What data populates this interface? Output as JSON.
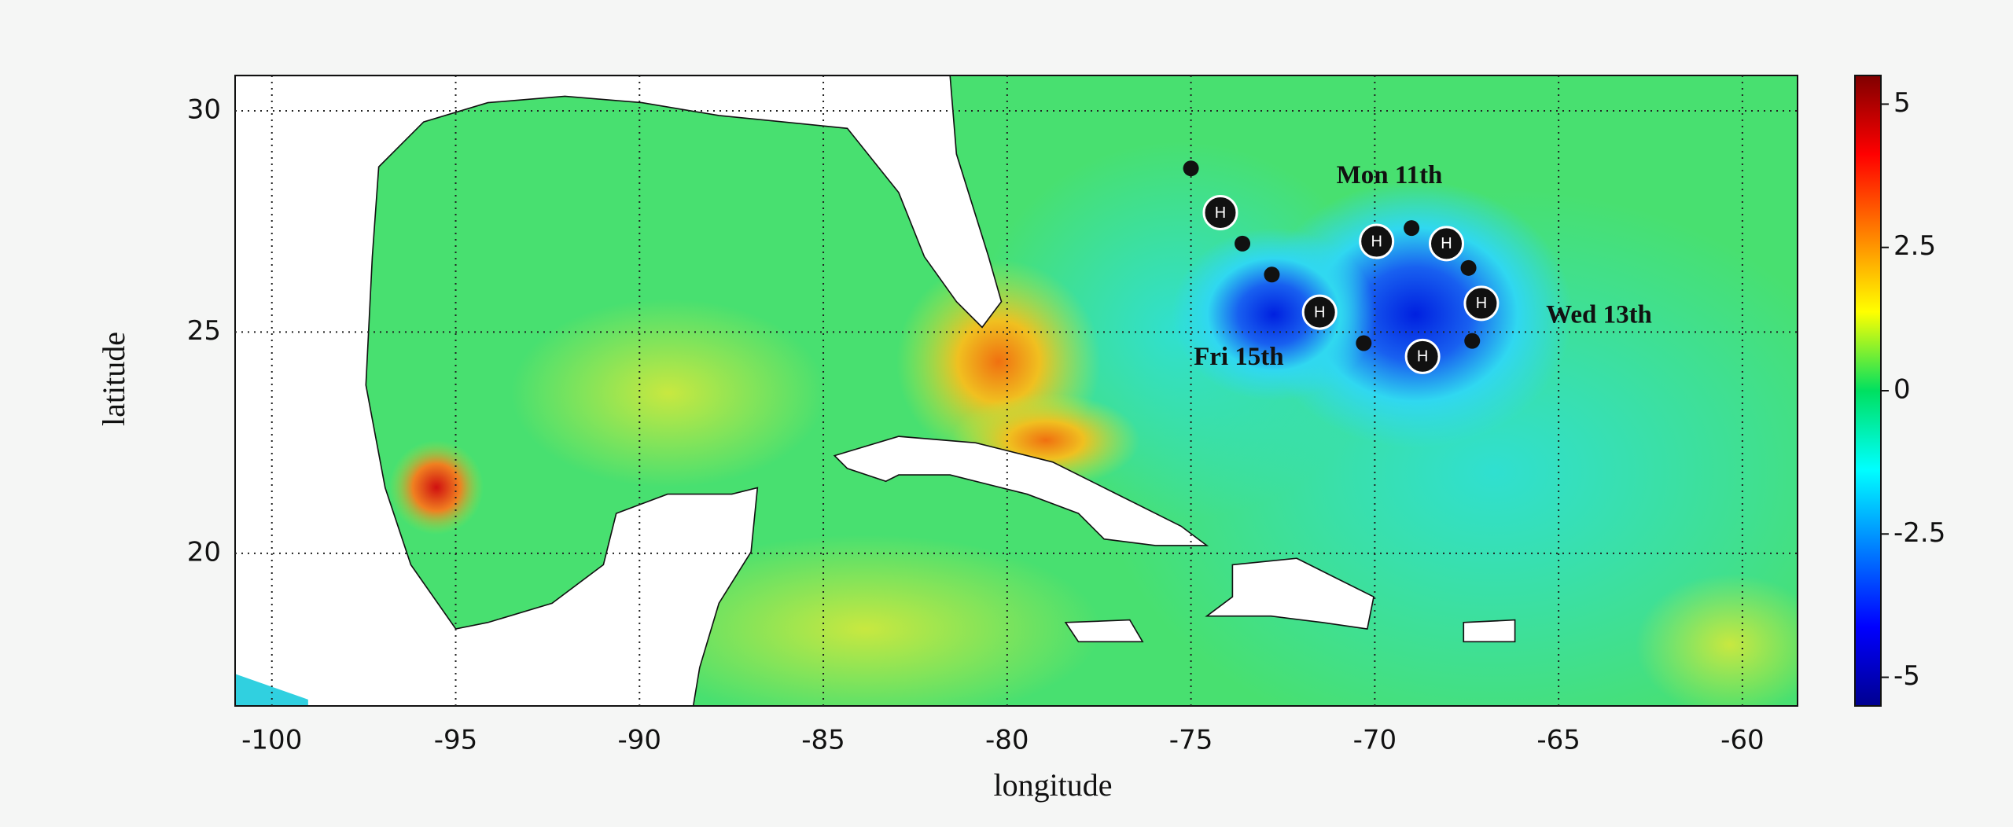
{
  "chart_data": {
    "type": "map",
    "xlabel": "longitude",
    "ylabel": "latitude",
    "xlim": [
      -101,
      -58.5
    ],
    "ylim": [
      16.55,
      30.8
    ],
    "xticks": [
      -100,
      -95,
      -90,
      -85,
      -80,
      -75,
      -70,
      -65,
      -60
    ],
    "yticks": [
      20,
      25,
      30
    ],
    "grid": true,
    "colorbar": {
      "lim": [
        -5.5,
        5.5
      ],
      "ticks": [
        -5,
        -2.5,
        0,
        2.5,
        5
      ]
    },
    "track": [
      {
        "lon": -75.0,
        "lat": 28.7
      },
      {
        "lon": -74.2,
        "lat": 27.7,
        "label": "H"
      },
      {
        "lon": -73.6,
        "lat": 27.0
      },
      {
        "lon": -72.8,
        "lat": 26.3
      },
      {
        "lon": -71.5,
        "lat": 25.45,
        "label": "H"
      },
      {
        "lon": -70.3,
        "lat": 24.75
      },
      {
        "lon": -68.7,
        "lat": 24.45,
        "label": "H"
      },
      {
        "lon": -67.35,
        "lat": 24.8
      },
      {
        "lon": -67.1,
        "lat": 25.65,
        "label": "H"
      },
      {
        "lon": -67.45,
        "lat": 26.45
      },
      {
        "lon": -68.05,
        "lat": 27.0,
        "label": "H"
      },
      {
        "lon": -69.0,
        "lat": 27.35
      },
      {
        "lon": -69.95,
        "lat": 27.05,
        "label": "H"
      }
    ],
    "annotations": [
      {
        "text": "Mon 11th",
        "lon": -69.6,
        "lat": 28.5
      },
      {
        "text": "Wed 13th",
        "lon": -63.9,
        "lat": 25.35
      },
      {
        "text": "Fri 15th",
        "lon": -73.7,
        "lat": 24.4
      }
    ]
  }
}
